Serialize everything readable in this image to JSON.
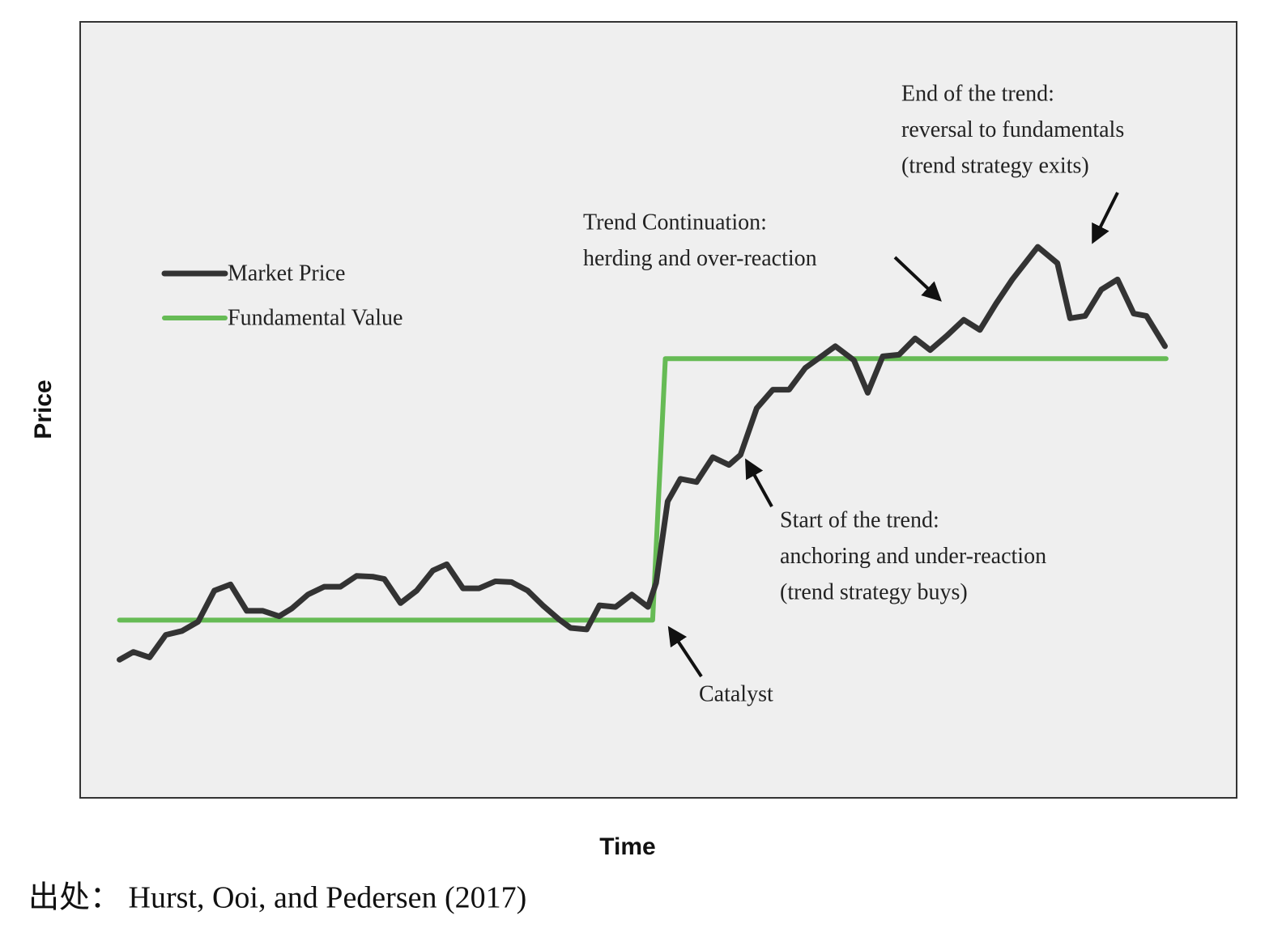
{
  "chart_data": {
    "type": "line",
    "xlabel": "Time",
    "ylabel": "Price",
    "xlim": [
      0,
      100
    ],
    "ylim": [
      0,
      100
    ],
    "legend": "upper left",
    "series": [
      {
        "name": "Market Price",
        "color": "#333333",
        "x": [
          3.4,
          4.6,
          6.0,
          7.4,
          8.8,
          10.2,
          11.6,
          13.0,
          14.4,
          15.8,
          17.2,
          18.3,
          19.7,
          21.1,
          22.5,
          23.9,
          25.3,
          26.3,
          27.7,
          29.1,
          30.5,
          31.7,
          33.1,
          34.5,
          35.9,
          37.3,
          38.7,
          40.0,
          41.4,
          42.4,
          43.8,
          44.9,
          46.3,
          47.7,
          49.1,
          49.8,
          50.8,
          51.9,
          53.3,
          54.7,
          56.1,
          57.1,
          58.5,
          59.9,
          61.3,
          62.7,
          64.1,
          65.3,
          66.9,
          68.1,
          69.4,
          70.8,
          72.2,
          73.5,
          74.9,
          76.4,
          77.8,
          79.2,
          80.6,
          82.8,
          84.5,
          85.6,
          86.9,
          88.3,
          89.7,
          91.1,
          92.2,
          93.8
        ],
        "values": [
          17.8,
          18.8,
          18.1,
          21.0,
          21.5,
          22.7,
          26.7,
          27.5,
          24.1,
          24.1,
          23.4,
          24.4,
          26.2,
          27.2,
          27.2,
          28.6,
          28.5,
          28.2,
          25.1,
          26.7,
          29.3,
          30.1,
          27.0,
          27.0,
          27.9,
          27.8,
          26.7,
          24.8,
          23.0,
          21.9,
          21.7,
          24.8,
          24.6,
          26.2,
          24.6,
          27.7,
          38.2,
          41.1,
          40.7,
          43.9,
          42.9,
          44.2,
          50.2,
          52.6,
          52.6,
          55.4,
          56.9,
          58.2,
          56.4,
          52.2,
          56.9,
          57.1,
          59.2,
          57.7,
          59.5,
          61.6,
          60.3,
          63.7,
          66.8,
          71.0,
          68.9,
          61.8,
          62.1,
          65.5,
          66.8,
          62.4,
          62.1,
          58.2
        ]
      },
      {
        "name": "Fundamental Value",
        "color": "#66bb55",
        "x": [
          3.4,
          49.5,
          50.6,
          93.9
        ],
        "values": [
          22.9,
          22.9,
          56.6,
          56.6
        ]
      }
    ],
    "annotations": [
      {
        "lines": [
          "End of the trend:",
          "reversal to fundamentals",
          "(trend strategy exits)"
        ]
      },
      {
        "lines": [
          "Trend Continuation:",
          "herding and over-reaction"
        ]
      },
      {
        "lines": [
          "Start of the trend:",
          "anchoring and under-reaction",
          "(trend strategy buys)"
        ]
      },
      {
        "lines": [
          "Catalyst"
        ]
      }
    ],
    "source": "出处： Hurst, Ooi, and Pedersen (2017)"
  }
}
